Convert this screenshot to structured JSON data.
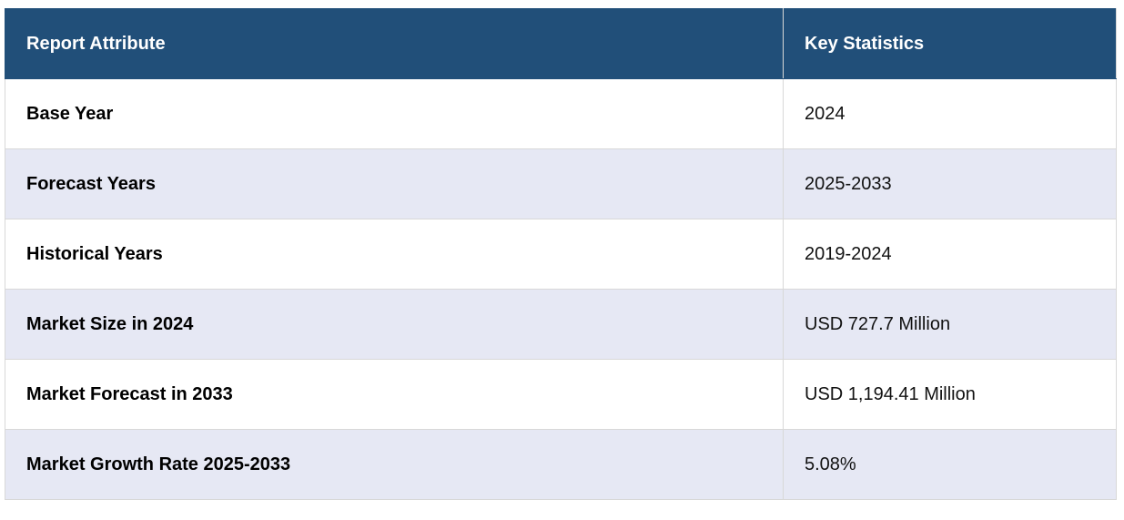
{
  "table": {
    "header": [
      "Report Attribute",
      "Key Statistics"
    ],
    "rows": [
      [
        "Base Year",
        "2024"
      ],
      [
        "Forecast Years",
        "2025-2033"
      ],
      [
        "Historical Years",
        "2019-2024"
      ],
      [
        "Market Size in 2024",
        "USD 727.7 Million"
      ],
      [
        "Market Forecast in 2033",
        "USD 1,194.41 Million"
      ],
      [
        "Market Growth Rate 2025-2033",
        "5.08%"
      ]
    ]
  }
}
